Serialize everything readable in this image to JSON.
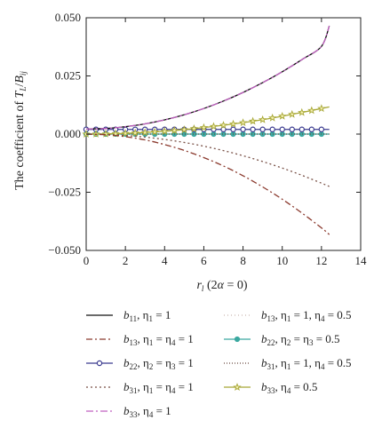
{
  "chart_data": {
    "type": "line",
    "title": "",
    "xlabel": "r_l (2α = 0)",
    "ylabel": "The coefficient of T_L/B_ij",
    "xlim": [
      0,
      14
    ],
    "ylim": [
      -0.05,
      0.05
    ],
    "x_ticks": [
      0,
      2,
      4,
      6,
      8,
      10,
      12,
      14
    ],
    "y_ticks": [
      -0.05,
      -0.025,
      0.0,
      0.025,
      0.05
    ],
    "x_tick_labels": [
      "0",
      "2",
      "4",
      "6",
      "8",
      "10",
      "12",
      "14"
    ],
    "y_tick_labels": [
      "−0.050",
      "−0.025",
      "0.000",
      "0.025",
      "0.050"
    ],
    "grid": false,
    "legend_position": "below",
    "x": [
      0,
      1,
      2,
      3,
      4,
      5,
      6,
      7,
      8,
      9,
      10,
      11,
      12,
      12.4
    ],
    "series": [
      {
        "name": "b11, η1 = 1",
        "color": "#111111",
        "dash": "",
        "marker": "none",
        "values": [
          0.0022,
          0.0024,
          0.0032,
          0.0044,
          0.0061,
          0.0083,
          0.011,
          0.0142,
          0.0179,
          0.0221,
          0.0268,
          0.032,
          0.0377,
          0.0465
        ]
      },
      {
        "name": "b13, η1 = η4 = 1",
        "color": "#8b3a2e",
        "dash": "7,3,2,3",
        "marker": "none",
        "values": [
          0.0,
          -0.0003,
          -0.0011,
          -0.0025,
          -0.0045,
          -0.007,
          -0.0101,
          -0.0137,
          -0.0179,
          -0.0227,
          -0.028,
          -0.0339,
          -0.0403,
          -0.0432
        ]
      },
      {
        "name": "b22, η2 = η3 = 1",
        "color": "#3b3b8f",
        "dash": "",
        "marker": "circle",
        "values": [
          0.002,
          0.002,
          0.002,
          0.002,
          0.002,
          0.002,
          0.002,
          0.002,
          0.002,
          0.002,
          0.002,
          0.002,
          0.002,
          0.002
        ]
      },
      {
        "name": "b31, η1 = η4 = 1",
        "color": "#7a5248",
        "dash": "2,3",
        "marker": "none",
        "values": [
          0.0,
          -0.0002,
          -0.0006,
          -0.0013,
          -0.0023,
          -0.0036,
          -0.0052,
          -0.0071,
          -0.0093,
          -0.0118,
          -0.0146,
          -0.0177,
          -0.0211,
          -0.0225
        ]
      },
      {
        "name": "b33, η4 = 1",
        "color": "#c060c0",
        "dash": "8,3,2,3",
        "marker": "none",
        "values": [
          0.0022,
          0.0024,
          0.0032,
          0.0044,
          0.0061,
          0.0083,
          0.011,
          0.0142,
          0.0179,
          0.0221,
          0.0268,
          0.032,
          0.0377,
          0.0465
        ]
      },
      {
        "name": "b13, η1 = 1, η4 = 0.5",
        "color": "#c9b8b0",
        "dash": "1,3",
        "marker": "none",
        "values": [
          0.0,
          0.0,
          0.0,
          0.0,
          0.0,
          0.0,
          0.0,
          0.0,
          0.0,
          0.0,
          0.0,
          0.0,
          0.0,
          0.0
        ]
      },
      {
        "name": "b22, η2 = η3 = 0.5",
        "color": "#3aa8a0",
        "dash": "",
        "marker": "circle-filled",
        "values": [
          0.0,
          0.0,
          0.0,
          0.0,
          0.0,
          0.0,
          0.0,
          0.0,
          0.0,
          0.0,
          0.0,
          0.0,
          0.0,
          0.0
        ]
      },
      {
        "name": "b31, η1 = 1, η4 = 0.5",
        "color": "#6b4a40",
        "dash": "1,2",
        "marker": "none",
        "values": [
          0.0,
          0.0,
          0.0,
          0.0,
          0.0,
          0.0,
          0.0,
          0.0,
          0.0,
          0.0,
          0.0,
          0.0,
          0.0,
          0.0
        ]
      },
      {
        "name": "b33, η4 = 0.5",
        "color": "#a8a838",
        "dash": "",
        "marker": "star",
        "values": [
          0.0,
          0.0001,
          0.0003,
          0.0007,
          0.0012,
          0.0019,
          0.0028,
          0.0038,
          0.0049,
          0.0062,
          0.0077,
          0.0093,
          0.011,
          0.0117
        ]
      }
    ]
  },
  "legend": [
    {
      "base": "b",
      "sub": "11",
      "tail": ", η",
      "tsub": "1",
      "rest": " = 1"
    },
    {
      "base": "b",
      "sub": "13",
      "tail": ", η",
      "tsub": "1",
      "rest": " = η",
      "rsub": "4",
      "end": " = 1"
    },
    {
      "base": "b",
      "sub": "22",
      "tail": ", η",
      "tsub": "2",
      "rest": " = η",
      "rsub": "3",
      "end": " = 1"
    },
    {
      "base": "b",
      "sub": "31",
      "tail": ", η",
      "tsub": "1",
      "rest": " = η",
      "rsub": "4",
      "end": " = 1"
    },
    {
      "base": "b",
      "sub": "33",
      "tail": ", η",
      "tsub": "4",
      "rest": " = 1"
    },
    {
      "base": "b",
      "sub": "13",
      "tail": ", η",
      "tsub": "1",
      "rest": " = 1, η",
      "rsub": "4",
      "end": " = 0.5"
    },
    {
      "base": "b",
      "sub": "22",
      "tail": ", η",
      "tsub": "2",
      "rest": " = η",
      "rsub": "3",
      "end": " = 0.5"
    },
    {
      "base": "b",
      "sub": "31",
      "tail": ", η",
      "tsub": "1",
      "rest": " = 1, η",
      "rsub": "4",
      "end": " = 0.5"
    },
    {
      "base": "b",
      "sub": "33",
      "tail": ", η",
      "tsub": "4",
      "rest": " = 0.5"
    }
  ]
}
